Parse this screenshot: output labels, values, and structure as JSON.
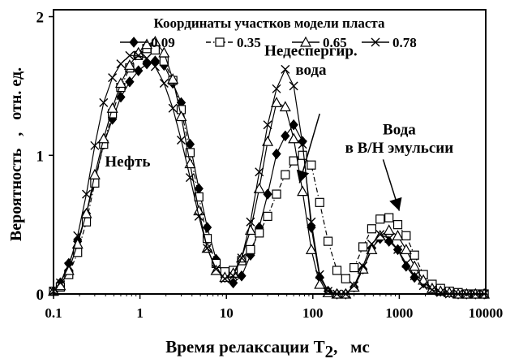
{
  "chart_data": {
    "type": "line",
    "title": "",
    "xlabel": "Время релаксации T",
    "xlabel_sub": "2",
    "xlabel_unit": ",   мс",
    "ylabel": "Вероятность   ,   отн. ед.",
    "xscale": "log",
    "xlim": [
      0.1,
      10000
    ],
    "ylim": [
      0,
      2.05
    ],
    "xticks": [
      {
        "v": 0.1,
        "label": "0.1"
      },
      {
        "v": 1,
        "label": "1"
      },
      {
        "v": 10,
        "label": "10"
      },
      {
        "v": 100,
        "label": "100"
      },
      {
        "v": 1000,
        "label": "1000"
      },
      {
        "v": 10000,
        "label": "10000"
      }
    ],
    "yticks": [
      {
        "v": 0,
        "label": "0"
      },
      {
        "v": 1,
        "label": "1"
      },
      {
        "v": 2,
        "label": "2"
      }
    ],
    "grid": false,
    "legend": {
      "title": "Координаты участков модели пласта",
      "placement": "top",
      "items": [
        "0.09",
        "0.35",
        "0.65",
        "0.78"
      ]
    },
    "annotations": [
      {
        "text": "Нефть",
        "x": 0.72,
        "y": 0.92
      },
      {
        "text": "Недеспергир.",
        "x": 95,
        "y": 1.72
      },
      {
        "text": "вода",
        "x": 95,
        "y": 1.58
      },
      {
        "text": "Вода",
        "x": 1000,
        "y": 1.15
      },
      {
        "text": "в В/Н эмульсии",
        "x": 1000,
        "y": 1.02
      }
    ],
    "arrows": [
      {
        "from": [
          120,
          1.3
        ],
        "to": [
          70,
          0.8
        ]
      },
      {
        "from": [
          650,
          0.97
        ],
        "to": [
          1000,
          0.6
        ]
      }
    ],
    "series": [
      {
        "name": "0.09",
        "marker": "diamond-filled",
        "dash": "solid",
        "x": [
          0.1,
          0.12,
          0.15,
          0.19,
          0.24,
          0.3,
          0.38,
          0.48,
          0.6,
          0.76,
          0.96,
          1.2,
          1.5,
          1.9,
          2.4,
          3.0,
          3.8,
          4.8,
          6.0,
          7.6,
          9.6,
          12,
          15,
          19,
          24,
          30,
          38,
          48,
          60,
          76,
          96,
          120,
          150,
          190,
          240,
          300,
          380,
          480,
          600,
          760,
          960,
          1200,
          1500,
          1900,
          2400,
          3000,
          3800,
          4800,
          6000,
          7600,
          9600
        ],
        "y": [
          0.02,
          0.08,
          0.22,
          0.38,
          0.58,
          0.82,
          1.08,
          1.26,
          1.42,
          1.53,
          1.61,
          1.66,
          1.68,
          1.65,
          1.52,
          1.38,
          1.08,
          0.76,
          0.48,
          0.25,
          0.12,
          0.08,
          0.13,
          0.28,
          0.48,
          0.72,
          1.01,
          1.14,
          1.22,
          1.1,
          0.48,
          0.12,
          0.02,
          0.0,
          0.0,
          0.05,
          0.18,
          0.33,
          0.4,
          0.38,
          0.32,
          0.2,
          0.12,
          0.08,
          0.04,
          0.02,
          0.01,
          0.0,
          0.0,
          0.0,
          0.0
        ]
      },
      {
        "name": "0.35",
        "marker": "square-open",
        "dash": "dashdot",
        "x": [
          0.1,
          0.12,
          0.15,
          0.19,
          0.24,
          0.3,
          0.38,
          0.48,
          0.6,
          0.76,
          0.96,
          1.2,
          1.5,
          1.9,
          2.4,
          3.0,
          3.8,
          4.8,
          6.0,
          7.6,
          9.6,
          12,
          15,
          19,
          24,
          30,
          38,
          48,
          60,
          76,
          96,
          120,
          150,
          190,
          240,
          300,
          380,
          480,
          600,
          760,
          960,
          1200,
          1500,
          1900,
          2400,
          3000,
          3800,
          4800,
          6000,
          7600,
          9600
        ],
        "y": [
          0.02,
          0.05,
          0.14,
          0.3,
          0.52,
          0.8,
          1.08,
          1.3,
          1.49,
          1.63,
          1.72,
          1.77,
          1.76,
          1.68,
          1.54,
          1.33,
          1.02,
          0.7,
          0.4,
          0.22,
          0.16,
          0.17,
          0.24,
          0.32,
          0.44,
          0.56,
          0.72,
          0.86,
          0.96,
          1.0,
          0.93,
          0.66,
          0.38,
          0.17,
          0.11,
          0.19,
          0.34,
          0.47,
          0.54,
          0.55,
          0.5,
          0.42,
          0.28,
          0.14,
          0.07,
          0.04,
          0.02,
          0.01,
          0.0,
          0.0,
          0.0
        ]
      },
      {
        "name": "0.65",
        "marker": "triangle-open",
        "dash": "solid",
        "x": [
          0.1,
          0.12,
          0.15,
          0.19,
          0.24,
          0.3,
          0.38,
          0.48,
          0.6,
          0.76,
          0.96,
          1.2,
          1.5,
          1.9,
          2.4,
          3.0,
          3.8,
          4.8,
          6.0,
          7.6,
          9.6,
          12,
          15,
          19,
          24,
          30,
          38,
          48,
          60,
          76,
          96,
          120,
          150,
          190,
          240,
          300,
          380,
          480,
          600,
          760,
          960,
          1200,
          1500,
          1900,
          2400,
          3000,
          3800,
          4800,
          6000,
          7600,
          9600
        ],
        "y": [
          0.02,
          0.06,
          0.17,
          0.36,
          0.58,
          0.86,
          1.12,
          1.34,
          1.52,
          1.65,
          1.74,
          1.8,
          1.82,
          1.74,
          1.55,
          1.28,
          0.94,
          0.6,
          0.33,
          0.17,
          0.12,
          0.15,
          0.26,
          0.46,
          0.76,
          1.1,
          1.38,
          1.35,
          1.12,
          0.74,
          0.32,
          0.07,
          0.01,
          0.0,
          0.0,
          0.05,
          0.18,
          0.32,
          0.42,
          0.46,
          0.42,
          0.32,
          0.2,
          0.1,
          0.04,
          0.02,
          0.01,
          0.0,
          0.0,
          0.0,
          0.0
        ]
      },
      {
        "name": "0.78",
        "marker": "x",
        "dash": "solid",
        "x": [
          0.1,
          0.12,
          0.15,
          0.19,
          0.24,
          0.3,
          0.38,
          0.48,
          0.6,
          0.76,
          0.96,
          1.2,
          1.5,
          1.9,
          2.4,
          3.0,
          3.8,
          4.8,
          6.0,
          7.6,
          9.6,
          12,
          15,
          19,
          24,
          30,
          38,
          48,
          60,
          76,
          96,
          120,
          150,
          190,
          240,
          300,
          380,
          480,
          600,
          760,
          960,
          1200,
          1500,
          1900,
          2400,
          3000,
          3800,
          4800,
          6000,
          7600,
          9600
        ],
        "y": [
          0.02,
          0.08,
          0.2,
          0.42,
          0.72,
          1.07,
          1.38,
          1.56,
          1.66,
          1.72,
          1.72,
          1.7,
          1.64,
          1.52,
          1.34,
          1.11,
          0.84,
          0.56,
          0.33,
          0.18,
          0.11,
          0.13,
          0.26,
          0.52,
          0.88,
          1.22,
          1.48,
          1.62,
          1.5,
          1.08,
          0.52,
          0.14,
          0.02,
          0.0,
          0.0,
          0.06,
          0.2,
          0.36,
          0.43,
          0.4,
          0.32,
          0.22,
          0.13,
          0.06,
          0.03,
          0.01,
          0.0,
          0.0,
          0.0,
          0.0,
          0.0
        ]
      }
    ]
  }
}
